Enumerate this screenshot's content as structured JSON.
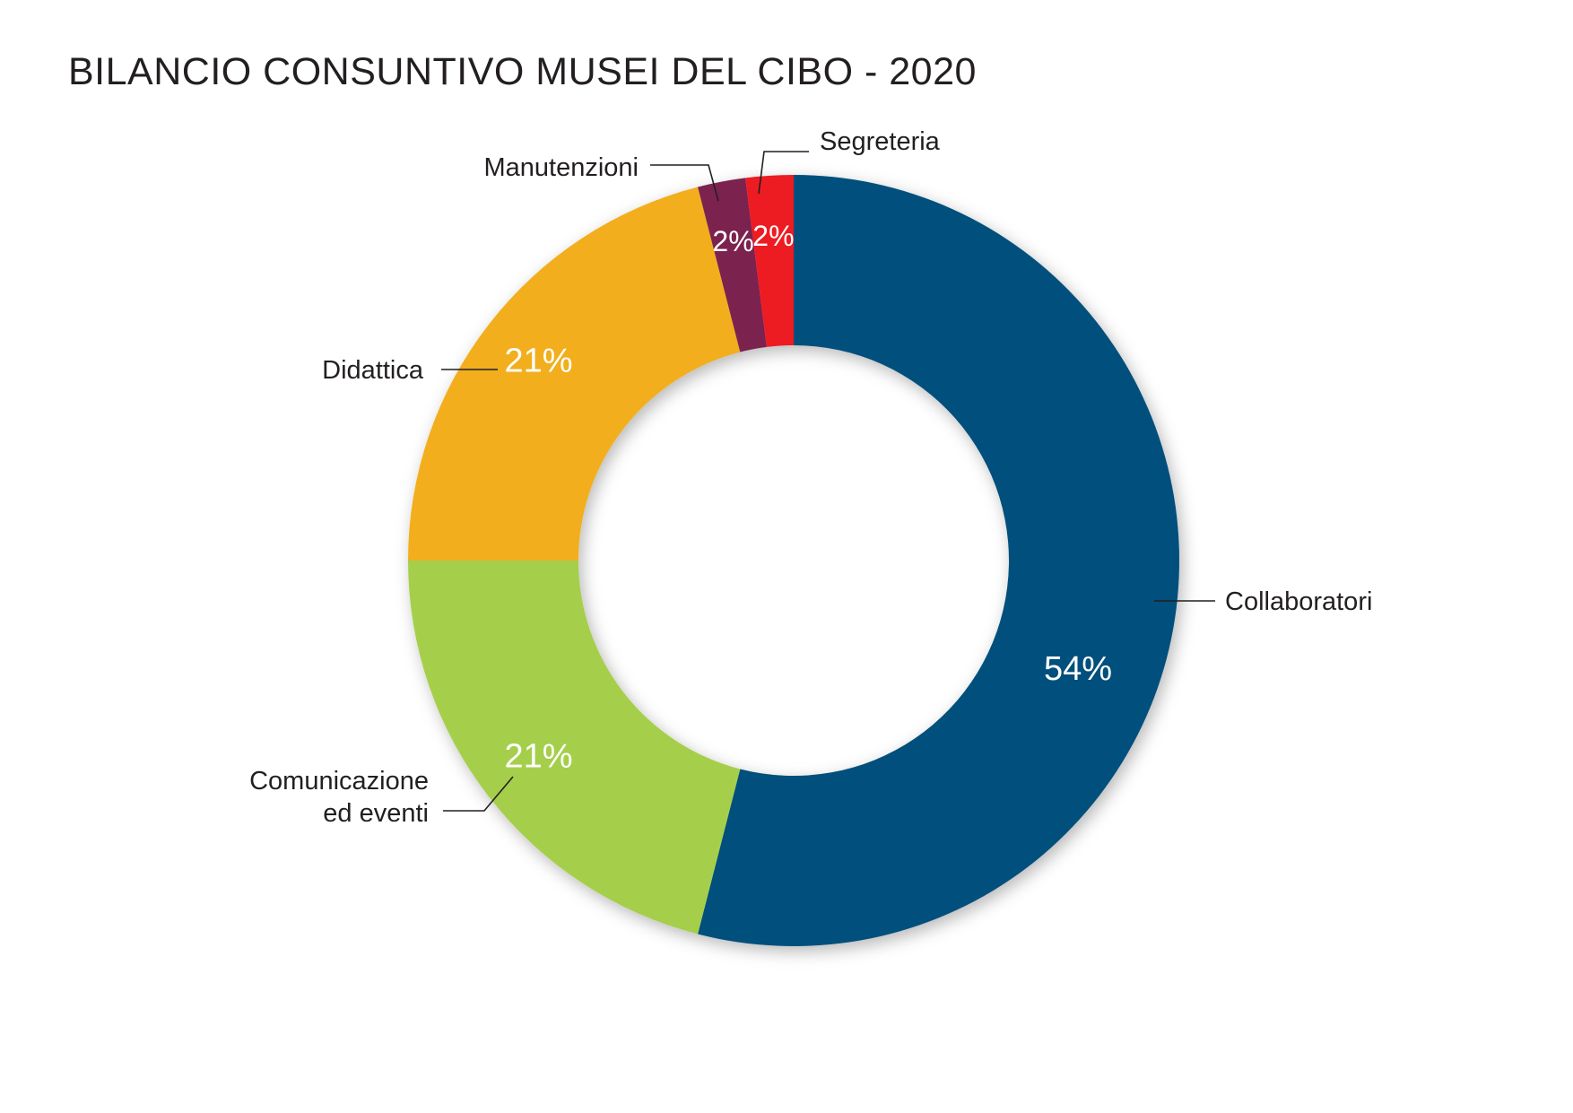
{
  "chart_data": {
    "type": "pie",
    "variant": "donut",
    "title": "BILANCIO CONSUNTIVO MUSEI DEL CIBO - 2020",
    "slices": [
      {
        "label": "Collaboratori",
        "value": 54,
        "value_label": "54%",
        "color": "#05507b"
      },
      {
        "label": "Comunicazione ed eventi",
        "label_lines": [
          "Comunicazione",
          "ed eventi"
        ],
        "value": 21,
        "value_label": "21%",
        "color": "#a5cf4c"
      },
      {
        "label": "Didattica",
        "value": 21,
        "value_label": "21%",
        "color": "#f2ae1c"
      },
      {
        "label": "Manutenzioni",
        "value": 2,
        "value_label": "2%",
        "color": "#7b2350"
      },
      {
        "label": "Segreteria",
        "value": 2,
        "value_label": "2%",
        "color": "#ed1c24"
      }
    ],
    "legend": "none"
  }
}
